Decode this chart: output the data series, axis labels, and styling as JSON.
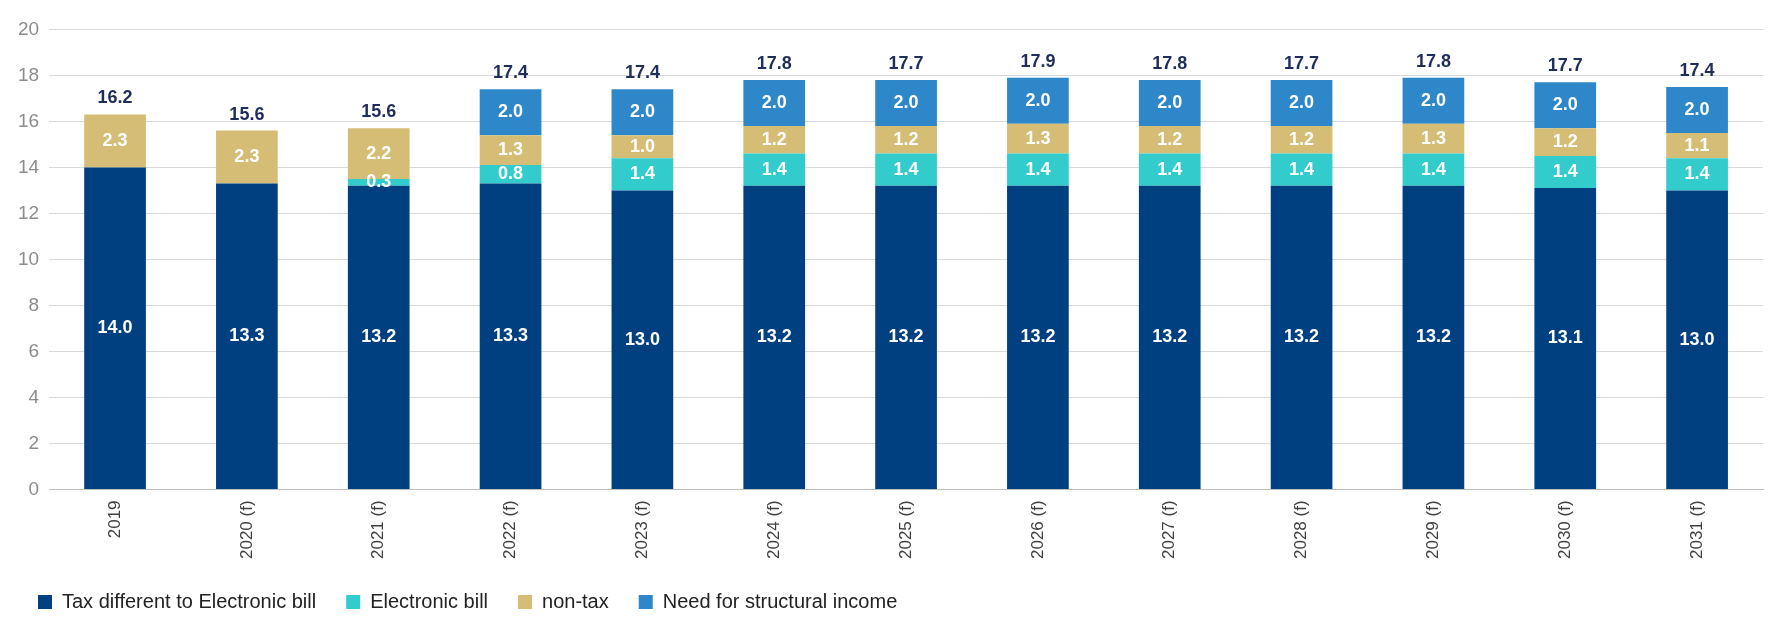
{
  "chart_data": {
    "type": "bar",
    "stacked": true,
    "categories": [
      "2019",
      "2020 (f)",
      "2021 (f)",
      "2022 (f)",
      "2023 (f)",
      "2024 (f)",
      "2025 (f)",
      "2026 (f)",
      "2027 (f)",
      "2028 (f)",
      "2029 (f)",
      "2030 (f)",
      "2031 (f)"
    ],
    "series": [
      {
        "name": "Tax different to Electronic bill",
        "color": "#004080",
        "values": [
          14.0,
          13.3,
          13.2,
          13.3,
          13.0,
          13.2,
          13.2,
          13.2,
          13.2,
          13.2,
          13.2,
          13.1,
          13.0
        ],
        "value_labels": [
          "14.0",
          "13.3",
          "13.2",
          "13.3",
          "13.0",
          "13.2",
          "13.2",
          "13.2",
          "13.2",
          "13.2",
          "13.2",
          "13.1",
          "13.0"
        ]
      },
      {
        "name": "Electronic bill",
        "color": "#33cccc",
        "values": [
          null,
          null,
          0.3,
          0.8,
          1.4,
          1.4,
          1.4,
          1.4,
          1.4,
          1.4,
          1.4,
          1.4,
          1.4
        ],
        "value_labels": [
          null,
          null,
          "0.3",
          "0.8",
          "1.4",
          "1.4",
          "1.4",
          "1.4",
          "1.4",
          "1.4",
          "1.4",
          "1.4",
          "1.4"
        ]
      },
      {
        "name": "non-tax",
        "color": "#d6bd76",
        "values": [
          2.3,
          2.3,
          2.2,
          1.3,
          1.0,
          1.2,
          1.2,
          1.3,
          1.2,
          1.2,
          1.3,
          1.2,
          1.1
        ],
        "value_labels": [
          "2.3",
          "2.3",
          "2.2",
          "1.3",
          "1.0",
          "1.2",
          "1.2",
          "1.3",
          "1.2",
          "1.2",
          "1.3",
          "1.2",
          "1.1"
        ]
      },
      {
        "name": "Need for structural income",
        "color": "#2e87c9",
        "values": [
          null,
          null,
          null,
          2.0,
          2.0,
          2.0,
          2.0,
          2.0,
          2.0,
          2.0,
          2.0,
          2.0,
          2.0
        ],
        "value_labels": [
          null,
          null,
          null,
          "2.0",
          "2.0",
          "2.0",
          "2.0",
          "2.0",
          "2.0",
          "2.0",
          "2.0",
          "2.0",
          "2.0"
        ]
      }
    ],
    "totals": [
      "16.2",
      "15.6",
      "15.6",
      "17.4",
      "17.4",
      "17.8",
      "17.7",
      "17.9",
      "17.8",
      "17.7",
      "17.8",
      "17.7",
      "17.4"
    ],
    "ylim": [
      0,
      20
    ],
    "yticks": [
      0,
      2,
      4,
      6,
      8,
      10,
      12,
      14,
      16,
      18,
      20
    ],
    "grid": "y",
    "legend": "bottom left"
  }
}
